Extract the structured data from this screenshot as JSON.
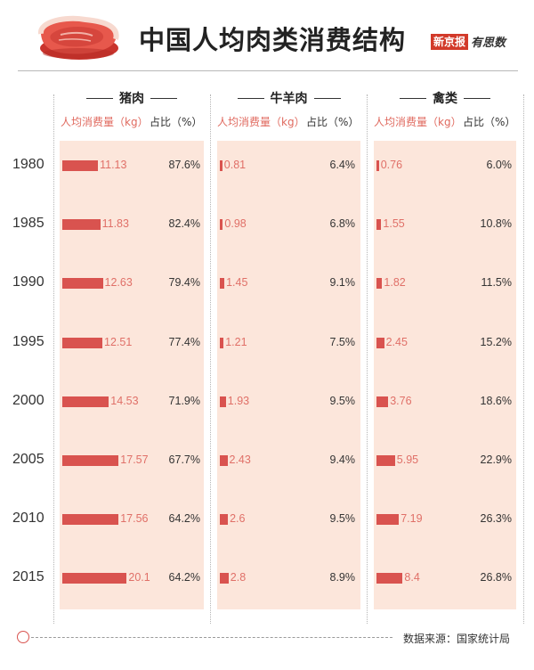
{
  "header": {
    "title": "中国人均肉类消费结构",
    "brand_paper": "新京报",
    "brand_script": "有思数"
  },
  "columns": [
    {
      "name": "猪肉",
      "sub_kg": "人均消费量（kg）",
      "sub_pct": "占比（%）"
    },
    {
      "name": "牛羊肉",
      "sub_kg": "人均消费量（kg）",
      "sub_pct": "占比（%）"
    },
    {
      "name": "禽类",
      "sub_kg": "人均消费量（kg）",
      "sub_pct": "占比（%）"
    }
  ],
  "rows": [
    {
      "year": "1980",
      "cells": [
        {
          "kg": "11.13",
          "pct": "87.6%"
        },
        {
          "kg": "0.81",
          "pct": "6.4%"
        },
        {
          "kg": "0.76",
          "pct": "6.0%"
        }
      ]
    },
    {
      "year": "1985",
      "cells": [
        {
          "kg": "11.83",
          "pct": "82.4%"
        },
        {
          "kg": "0.98",
          "pct": "6.8%"
        },
        {
          "kg": "1.55",
          "pct": "10.8%"
        }
      ]
    },
    {
      "year": "1990",
      "cells": [
        {
          "kg": "12.63",
          "pct": "79.4%"
        },
        {
          "kg": "1.45",
          "pct": "9.1%"
        },
        {
          "kg": "1.82",
          "pct": "11.5%"
        }
      ]
    },
    {
      "year": "1995",
      "cells": [
        {
          "kg": "12.51",
          "pct": "77.4%"
        },
        {
          "kg": "1.21",
          "pct": "7.5%"
        },
        {
          "kg": "2.45",
          "pct": "15.2%"
        }
      ]
    },
    {
      "year": "2000",
      "cells": [
        {
          "kg": "14.53",
          "pct": "71.9%"
        },
        {
          "kg": "1.93",
          "pct": "9.5%"
        },
        {
          "kg": "3.76",
          "pct": "18.6%"
        }
      ]
    },
    {
      "year": "2005",
      "cells": [
        {
          "kg": "17.57",
          "pct": "67.7%"
        },
        {
          "kg": "2.43",
          "pct": "9.4%"
        },
        {
          "kg": "5.95",
          "pct": "22.9%"
        }
      ]
    },
    {
      "year": "2010",
      "cells": [
        {
          "kg": "17.56",
          "pct": "64.2%"
        },
        {
          "kg": "2.6",
          "pct": "9.5%"
        },
        {
          "kg": "7.19",
          "pct": "26.3%"
        }
      ]
    },
    {
      "year": "2015",
      "cells": [
        {
          "kg": "20.1",
          "pct": "64.2%"
        },
        {
          "kg": "2.8",
          "pct": "8.9%"
        },
        {
          "kg": "8.4",
          "pct": "26.8%"
        }
      ]
    }
  ],
  "footer": {
    "source": "数据来源：国家统计局"
  },
  "colors": {
    "bar": "#d9534f",
    "column_bg": "#fce6db",
    "value_text": "#e07068",
    "accent": "#d23a2a"
  },
  "icons": [
    "meat-steak-icon",
    "footer-circle-icon"
  ],
  "chart_data": {
    "type": "bar",
    "title": "中国人均肉类消费结构",
    "categories": [
      "1980",
      "1985",
      "1990",
      "1995",
      "2000",
      "2005",
      "2010",
      "2015"
    ],
    "unit": "kg",
    "series": [
      {
        "name": "猪肉",
        "values": [
          11.13,
          11.83,
          12.63,
          12.51,
          14.53,
          17.57,
          17.56,
          20.1
        ],
        "share_percent": [
          87.6,
          82.4,
          79.4,
          77.4,
          71.9,
          67.7,
          64.2,
          64.2
        ]
      },
      {
        "name": "牛羊肉",
        "values": [
          0.81,
          0.98,
          1.45,
          1.21,
          1.93,
          2.43,
          2.6,
          2.8
        ],
        "share_percent": [
          6.4,
          6.8,
          9.1,
          7.5,
          9.5,
          9.4,
          9.5,
          8.9
        ]
      },
      {
        "name": "禽类",
        "values": [
          0.76,
          1.55,
          1.82,
          2.45,
          3.76,
          5.95,
          7.19,
          8.4
        ],
        "share_percent": [
          6.0,
          10.8,
          11.5,
          15.2,
          18.6,
          22.9,
          26.3,
          26.8
        ]
      }
    ],
    "source": "数据来源：国家统计局"
  }
}
